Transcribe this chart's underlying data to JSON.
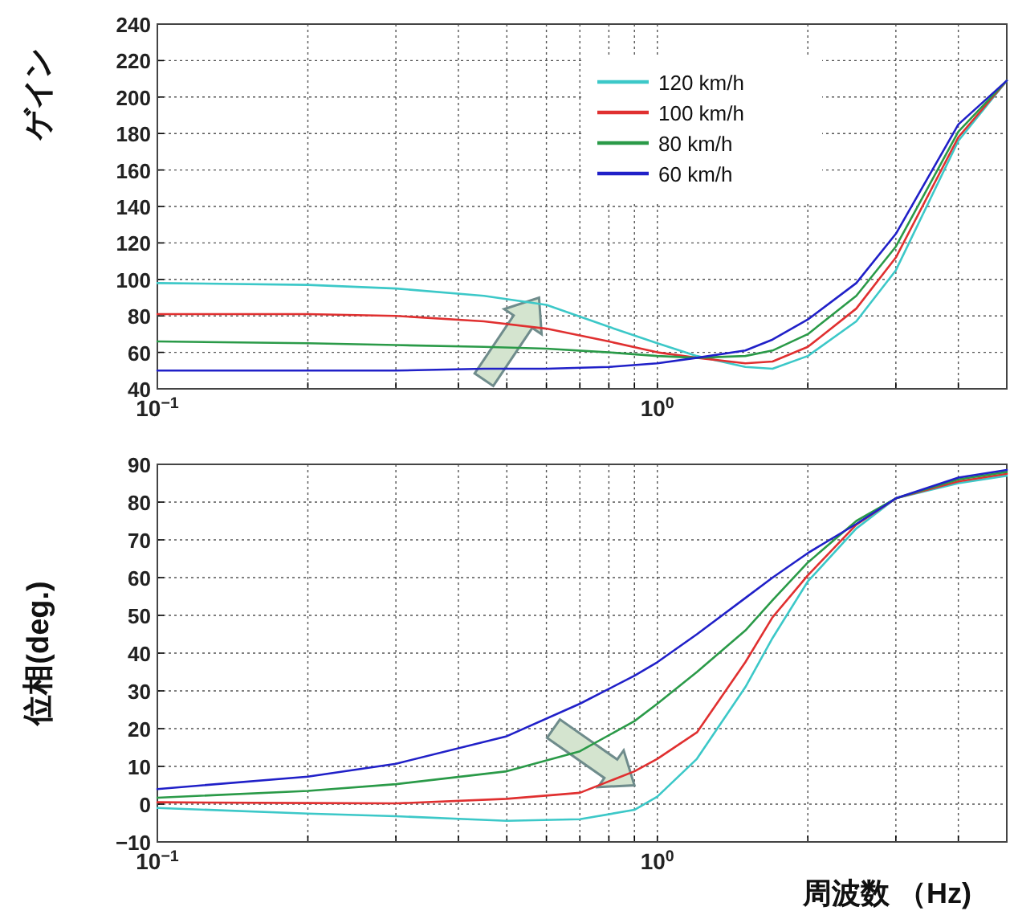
{
  "chart_data": [
    {
      "type": "line",
      "ylabel": "ゲイン",
      "log": "x",
      "grid": true,
      "legend": "top right",
      "line_style": "solid",
      "marker": "none",
      "xlim": [
        0.1,
        5
      ],
      "ylim": [
        40,
        240
      ],
      "xticks": [
        {
          "value": 0.1,
          "label": "10$^{−1}$"
        },
        {
          "value": 0.2,
          "label": null
        },
        {
          "value": 0.3,
          "label": null
        },
        {
          "value": 0.4,
          "label": null
        },
        {
          "value": 0.5,
          "label": null
        },
        {
          "value": 0.6,
          "label": null
        },
        {
          "value": 0.7,
          "label": null
        },
        {
          "value": 0.8,
          "label": null
        },
        {
          "value": 0.9,
          "label": null
        },
        {
          "value": 1,
          "label": "10$^{0}$"
        },
        {
          "value": 2,
          "label": null
        },
        {
          "value": 3,
          "label": null
        },
        {
          "value": 4,
          "label": null
        }
      ],
      "yticks": [
        40,
        60,
        80,
        100,
        120,
        140,
        160,
        180,
        200,
        220,
        240
      ],
      "x": [
        0.1,
        0.2,
        0.3,
        0.45,
        0.6,
        0.8,
        1.0,
        1.2,
        1.5,
        1.7,
        2.0,
        2.5,
        3.0,
        4.0,
        5.0
      ],
      "series": [
        {
          "name": "120 km/h",
          "color": "#3cc8c8",
          "values": [
            98,
            97,
            95,
            91,
            86,
            74,
            65,
            58,
            52,
            51,
            58,
            77,
            105,
            176,
            209
          ]
        },
        {
          "name": "100 km/h",
          "color": "#e03030",
          "values": [
            81,
            81,
            80,
            77,
            73,
            66,
            60,
            57,
            54,
            55,
            63,
            84,
            112,
            178,
            209
          ]
        },
        {
          "name": "80 km/h",
          "color": "#2a9a48",
          "values": [
            66,
            65,
            64,
            63,
            62,
            60,
            58,
            57,
            58,
            61,
            70,
            91,
            118,
            181,
            209
          ]
        },
        {
          "name": "60 km/h",
          "color": "#2020c8",
          "values": [
            50,
            50,
            50,
            51,
            51,
            52,
            54,
            57,
            61,
            67,
            78,
            98,
            125,
            185,
            209
          ]
        }
      ]
    },
    {
      "type": "line",
      "ylabel": "位相(deg.)",
      "xlabel": "周波数 （Hz)",
      "log": "x",
      "grid": true,
      "line_style": "solid",
      "marker": "none",
      "xlim": [
        0.1,
        5
      ],
      "ylim": [
        -10,
        90
      ],
      "xticks": [
        {
          "value": 0.1,
          "label": "10$^{−1}$"
        },
        {
          "value": 0.2,
          "label": null
        },
        {
          "value": 0.3,
          "label": null
        },
        {
          "value": 0.4,
          "label": null
        },
        {
          "value": 0.5,
          "label": null
        },
        {
          "value": 0.6,
          "label": null
        },
        {
          "value": 0.7,
          "label": null
        },
        {
          "value": 0.8,
          "label": null
        },
        {
          "value": 0.9,
          "label": null
        },
        {
          "value": 1,
          "label": "10$^{0}$"
        },
        {
          "value": 2,
          "label": null
        },
        {
          "value": 3,
          "label": null
        },
        {
          "value": 4,
          "label": null
        }
      ],
      "yticks": [
        {
          "value": -10,
          "label": "−10"
        },
        0,
        10,
        20,
        30,
        40,
        50,
        60,
        70,
        80,
        90
      ],
      "x": [
        0.1,
        0.2,
        0.3,
        0.5,
        0.7,
        0.9,
        1.0,
        1.2,
        1.5,
        1.7,
        2.0,
        2.5,
        3.0,
        4.0,
        5.0
      ],
      "series": [
        {
          "color": "#3cc8c8",
          "values": [
            -1,
            -2.5,
            -3.2,
            -4.4,
            -4,
            -1.5,
            2,
            12,
            31,
            44,
            59,
            73,
            81,
            85,
            87
          ]
        },
        {
          "color": "#e03030",
          "values": [
            0.5,
            0.3,
            0.2,
            1.4,
            3,
            8.7,
            12,
            19,
            37.6,
            49.5,
            60.6,
            74,
            81,
            85.5,
            87.5
          ]
        },
        {
          "color": "#2a9a48",
          "values": [
            1.7,
            3.5,
            5.3,
            8.7,
            14,
            22,
            26.6,
            35,
            46,
            54,
            64,
            75,
            81,
            86,
            88
          ]
        },
        {
          "color": "#2020c8",
          "values": [
            4,
            7.3,
            10.7,
            18,
            26.6,
            34,
            37.6,
            45,
            54.6,
            60,
            66.5,
            74.2,
            81,
            86.5,
            88.5
          ]
        }
      ]
    }
  ]
}
